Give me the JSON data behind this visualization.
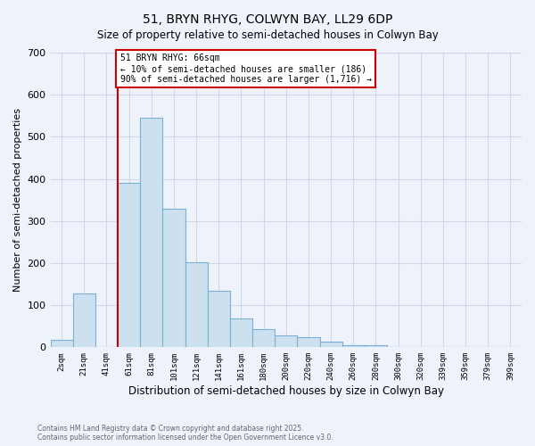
{
  "title": "51, BRYN RHYG, COLWYN BAY, LL29 6DP",
  "subtitle": "Size of property relative to semi-detached houses in Colwyn Bay",
  "xlabel": "Distribution of semi-detached houses by size in Colwyn Bay",
  "ylabel": "Number of semi-detached properties",
  "bin_labels": [
    "2sqm",
    "21sqm",
    "41sqm",
    "61sqm",
    "81sqm",
    "101sqm",
    "121sqm",
    "141sqm",
    "161sqm",
    "180sqm",
    "200sqm",
    "220sqm",
    "240sqm",
    "260sqm",
    "280sqm",
    "300sqm",
    "320sqm",
    "339sqm",
    "359sqm",
    "379sqm",
    "399sqm"
  ],
  "bar_heights": [
    18,
    128,
    0,
    390,
    545,
    330,
    202,
    135,
    68,
    43,
    29,
    25,
    13,
    6,
    4,
    0,
    0,
    0,
    0,
    0,
    0
  ],
  "bar_color": "#cce0f0",
  "bar_edge_color": "#7ab0d4",
  "vline_color": "#cc0000",
  "annotation_title": "51 BRYN RHYG: 66sqm",
  "annotation_line1": "← 10% of semi-detached houses are smaller (186)",
  "annotation_line2": "90% of semi-detached houses are larger (1,716) →",
  "annotation_box_color": "#cc0000",
  "ylim": [
    0,
    700
  ],
  "yticks": [
    0,
    100,
    200,
    300,
    400,
    500,
    600,
    700
  ],
  "footer_line1": "Contains HM Land Registry data © Crown copyright and database right 2025.",
  "footer_line2": "Contains public sector information licensed under the Open Government Licence v3.0.",
  "bg_color": "#eef2fa",
  "grid_color": "#d0d8e8"
}
